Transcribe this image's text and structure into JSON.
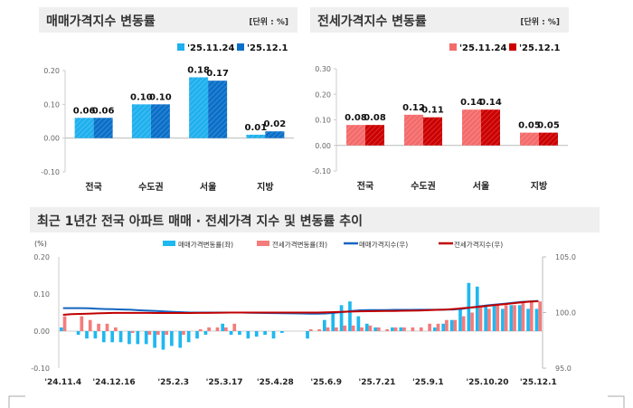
{
  "panels": [
    {
      "title": "매매가격지수 변동률",
      "unit": "[단위 : %]"
    },
    {
      "title": "전세가격지수 변동률",
      "unit": "[단위 : %]"
    },
    {
      "title": "최근 1년간 전국 아파트 매매 · 전세가격 지수 및 변동률 추이"
    }
  ],
  "chart_data": [
    {
      "type": "bar",
      "title": "매매가격지수 변동률",
      "categories": [
        "전국",
        "수도권",
        "서울",
        "지방"
      ],
      "series": [
        {
          "name": "'25.11.24",
          "values": [
            0.06,
            0.1,
            0.18,
            0.01
          ],
          "color": "#1fb0ee"
        },
        {
          "name": "'25.12.1",
          "values": [
            0.06,
            0.1,
            0.17,
            0.02
          ],
          "color": "#0a6fc8"
        }
      ],
      "ylim": [
        -0.1,
        0.2
      ],
      "yticks": [
        "0.20",
        "0.10",
        "0.00",
        "-0.10"
      ],
      "legend": "top-right"
    },
    {
      "type": "bar",
      "title": "전세가격지수 변동률",
      "categories": [
        "전국",
        "수도권",
        "서울",
        "지방"
      ],
      "series": [
        {
          "name": "'25.11.24",
          "values": [
            0.08,
            0.12,
            0.14,
            0.05
          ],
          "color": "#f46b6b"
        },
        {
          "name": "'25.12.1",
          "values": [
            0.08,
            0.11,
            0.14,
            0.05
          ],
          "color": "#cc0000"
        }
      ],
      "ylim": [
        -0.1,
        0.3
      ],
      "yticks": [
        "0.30",
        "0.20",
        "0.10",
        "0.00",
        "-0.10"
      ],
      "legend": "top-right"
    },
    {
      "type": "bar+line",
      "title": "최근 1년간 전국 아파트 매매 · 전세가격 지수 및 변동률 추이",
      "ylabel": "(%)",
      "ylim": [
        -0.1,
        0.2
      ],
      "yticks": [
        "0.20",
        "0.10",
        "0.00",
        "-0.10"
      ],
      "y2lim": [
        95,
        105
      ],
      "y2ticks": [
        "105.0",
        "100.0",
        "95.0"
      ],
      "xticks": [
        "'24.11.4",
        "'24.12.16",
        "'25.2.3",
        "'25.3.17",
        "'25.4.28",
        "'25.6.9",
        "'25.7.21",
        "'25.9.1",
        "'25.10.20",
        "'25.12.1"
      ],
      "xtick_index": [
        0,
        6,
        13,
        19,
        25,
        31,
        37,
        43,
        50,
        56
      ],
      "series": [
        {
          "name": "매매가격변동률(좌)",
          "kind": "bar",
          "color": "#1fb8f0",
          "values": [
            0.01,
            0.0,
            -0.01,
            -0.02,
            -0.02,
            -0.03,
            -0.03,
            -0.03,
            -0.035,
            -0.035,
            -0.035,
            -0.045,
            -0.05,
            -0.04,
            -0.045,
            -0.03,
            -0.02,
            -0.01,
            0.0,
            0.02,
            -0.01,
            -0.01,
            -0.02,
            -0.015,
            -0.01,
            -0.02,
            -0.005,
            0.0,
            0.0,
            -0.02,
            0.0,
            0.03,
            0.05,
            0.07,
            0.08,
            0.04,
            0.02,
            0.01,
            0.0,
            0.01,
            0.01,
            0.0,
            0.0,
            0.0,
            0.01,
            0.02,
            0.03,
            0.06,
            0.13,
            0.12,
            0.07,
            0.07,
            0.06,
            0.07,
            0.07,
            0.06,
            0.06
          ]
        },
        {
          "name": "전세가격변동률(좌)",
          "kind": "bar",
          "color": "#f47c7c",
          "values": [
            0.04,
            0.0,
            0.04,
            0.03,
            0.02,
            0.02,
            0.01,
            0.0,
            -0.005,
            0.0,
            -0.01,
            -0.01,
            -0.01,
            0.0,
            -0.01,
            0.0,
            0.005,
            0.01,
            0.01,
            0.01,
            0.02,
            0.0,
            0.0,
            0.0,
            0.0,
            0.0,
            0.0,
            0.0,
            0.0,
            0.005,
            0.005,
            0.01,
            0.01,
            0.015,
            0.015,
            0.01,
            0.015,
            0.01,
            0.005,
            0.01,
            0.01,
            0.01,
            0.01,
            0.02,
            0.02,
            0.03,
            0.03,
            0.04,
            0.05,
            0.07,
            0.06,
            0.07,
            0.07,
            0.07,
            0.08,
            0.08,
            0.08
          ]
        },
        {
          "name": "매매가격지수(우)",
          "kind": "line",
          "color": "#1565c0",
          "values": [
            100.4,
            100.4,
            100.4,
            100.38,
            100.35,
            100.32,
            100.3,
            100.28,
            100.25,
            100.2,
            100.17,
            100.14,
            100.1,
            100.06,
            100.03,
            100.0,
            100.0,
            100.0,
            100.0,
            100.0,
            100.0,
            100.0,
            99.98,
            99.97,
            99.96,
            99.95,
            99.94,
            99.93,
            99.92,
            99.9,
            99.9,
            99.92,
            99.98,
            100.05,
            100.15,
            100.2,
            100.22,
            100.23,
            100.23,
            100.24,
            100.24,
            100.24,
            100.25,
            100.25,
            100.25,
            100.26,
            100.28,
            100.33,
            100.45,
            100.55,
            100.65,
            100.72,
            100.8,
            100.88,
            100.95,
            101.0,
            101.05
          ]
        },
        {
          "name": "전세가격지수(우)",
          "kind": "line",
          "color": "#c00000",
          "values": [
            99.8,
            99.85,
            99.88,
            99.9,
            99.93,
            99.95,
            99.97,
            99.97,
            99.97,
            99.97,
            99.97,
            99.96,
            99.96,
            99.96,
            99.96,
            99.96,
            99.97,
            99.97,
            99.98,
            99.99,
            100.0,
            100.0,
            100.0,
            100.0,
            100.0,
            100.0,
            100.0,
            100.0,
            100.0,
            100.0,
            100.0,
            100.02,
            100.04,
            100.07,
            100.09,
            100.11,
            100.12,
            100.13,
            100.14,
            100.15,
            100.16,
            100.17,
            100.19,
            100.21,
            100.24,
            100.27,
            100.32,
            100.38,
            100.45,
            100.52,
            100.6,
            100.68,
            100.76,
            100.84,
            100.92,
            100.98,
            101.02
          ]
        }
      ],
      "legend": "top"
    }
  ]
}
